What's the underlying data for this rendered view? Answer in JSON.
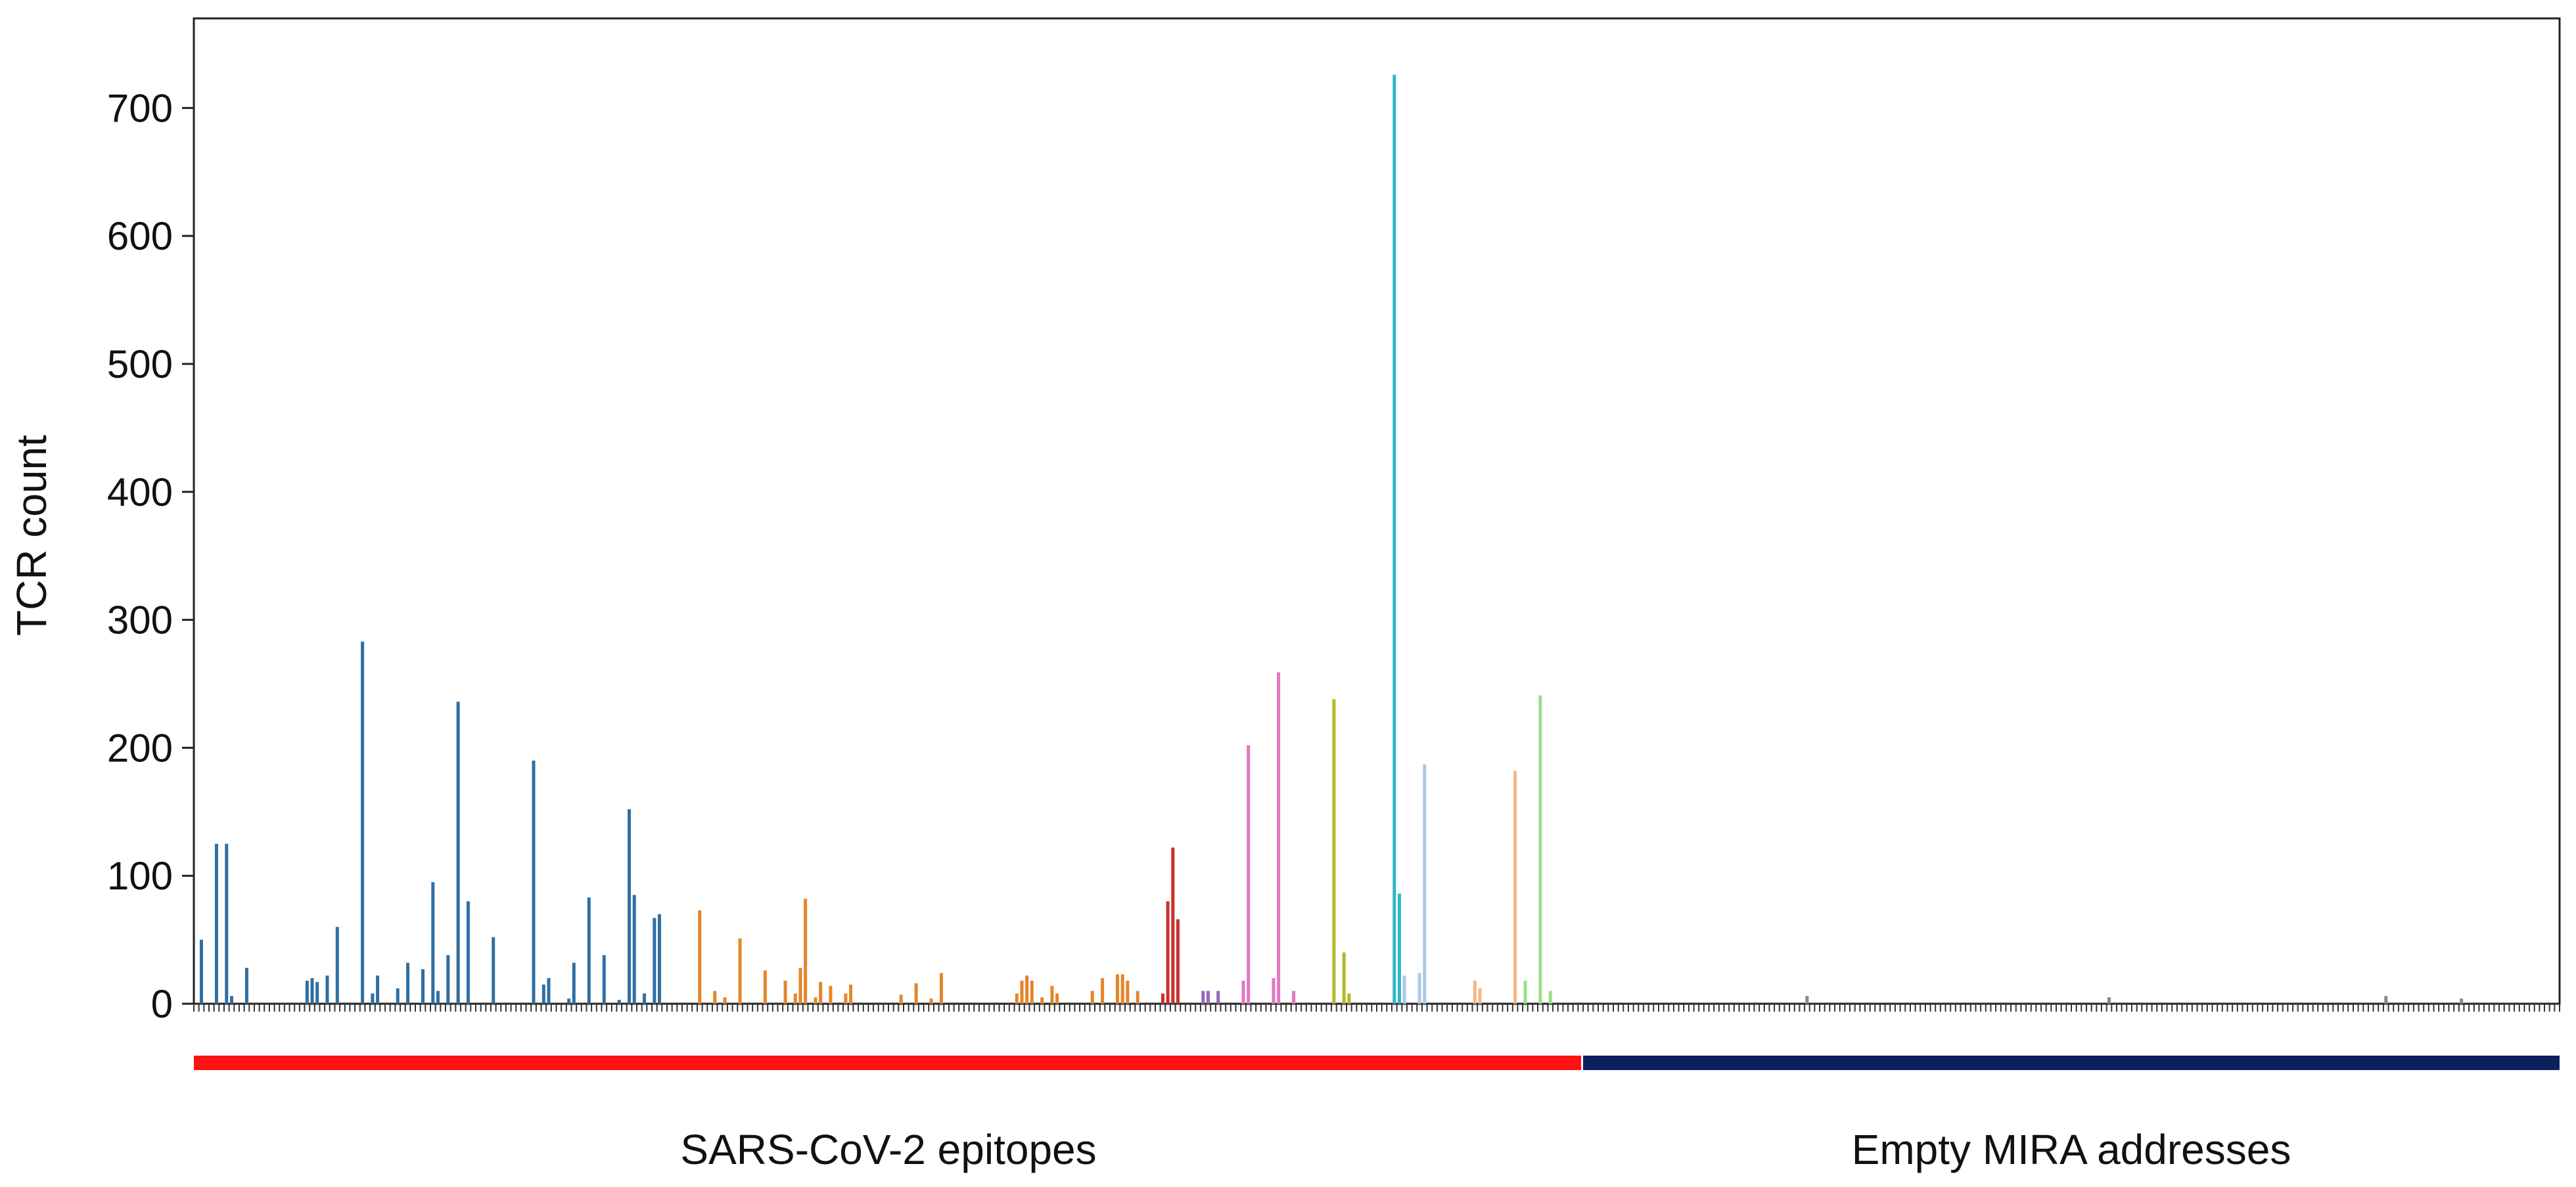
{
  "chart_data": {
    "type": "bar",
    "title": "",
    "xlabel": "",
    "ylabel": "TCR count",
    "ylim": [
      0,
      770
    ],
    "yticks": [
      0,
      100,
      200,
      300,
      400,
      500,
      600,
      700
    ],
    "grid": false,
    "legend": "none",
    "colors": {
      "blue": "#2f6fa3",
      "orange": "#e6852b",
      "red": "#c9302c",
      "purple": "#9467bd",
      "pink": "#e377c2",
      "olive": "#b5b82a",
      "cyan": "#2fb6c8",
      "lightblue": "#aec7e8",
      "peach": "#f7b680",
      "lightgreen": "#98df8a",
      "gray": "#888888"
    },
    "series_colors": [
      "blue",
      "orange",
      "red",
      "purple",
      "pink",
      "olive",
      "cyan",
      "lightblue",
      "peach",
      "lightgreen",
      "gray"
    ],
    "groups": [
      {
        "label": "SARS-CoV-2 epitopes",
        "color": "#ff1111",
        "count": 276
      },
      {
        "label": "Empty MIRA addresses",
        "color": "#0d1f5e",
        "count": 194
      }
    ],
    "bars": [
      [
        1,
        50,
        0
      ],
      [
        4,
        125,
        0
      ],
      [
        6,
        125,
        0
      ],
      [
        7,
        6,
        0
      ],
      [
        10,
        28,
        0
      ],
      [
        22,
        18,
        0
      ],
      [
        23,
        20,
        0
      ],
      [
        24,
        17,
        0
      ],
      [
        26,
        22,
        0
      ],
      [
        28,
        60,
        0
      ],
      [
        33,
        283,
        0
      ],
      [
        35,
        8,
        0
      ],
      [
        36,
        22,
        0
      ],
      [
        40,
        12,
        0
      ],
      [
        42,
        32,
        0
      ],
      [
        45,
        27,
        0
      ],
      [
        47,
        95,
        0
      ],
      [
        48,
        10,
        0
      ],
      [
        50,
        38,
        0
      ],
      [
        52,
        236,
        0
      ],
      [
        54,
        80,
        0
      ],
      [
        59,
        52,
        0
      ],
      [
        67,
        190,
        0
      ],
      [
        69,
        15,
        0
      ],
      [
        70,
        20,
        0
      ],
      [
        74,
        4,
        0
      ],
      [
        75,
        32,
        0
      ],
      [
        78,
        83,
        0
      ],
      [
        81,
        38,
        0
      ],
      [
        84,
        3,
        0
      ],
      [
        86,
        152,
        0
      ],
      [
        87,
        85,
        0
      ],
      [
        89,
        8,
        0
      ],
      [
        91,
        67,
        0
      ],
      [
        92,
        70,
        0
      ],
      [
        100,
        73,
        1
      ],
      [
        103,
        10,
        1
      ],
      [
        105,
        5,
        1
      ],
      [
        108,
        51,
        1
      ],
      [
        113,
        26,
        1
      ],
      [
        117,
        18,
        1
      ],
      [
        119,
        8,
        1
      ],
      [
        120,
        28,
        1
      ],
      [
        121,
        82,
        1
      ],
      [
        123,
        5,
        1
      ],
      [
        124,
        17,
        1
      ],
      [
        126,
        14,
        1
      ],
      [
        129,
        8,
        1
      ],
      [
        130,
        15,
        1
      ],
      [
        140,
        7,
        1
      ],
      [
        143,
        16,
        1
      ],
      [
        146,
        4,
        1
      ],
      [
        148,
        24,
        1
      ],
      [
        163,
        8,
        1
      ],
      [
        164,
        18,
        1
      ],
      [
        165,
        22,
        1
      ],
      [
        166,
        18,
        1
      ],
      [
        168,
        5,
        1
      ],
      [
        170,
        14,
        1
      ],
      [
        171,
        8,
        1
      ],
      [
        178,
        10,
        1
      ],
      [
        180,
        20,
        1
      ],
      [
        183,
        23,
        1
      ],
      [
        184,
        23,
        1
      ],
      [
        185,
        18,
        1
      ],
      [
        187,
        10,
        1
      ],
      [
        192,
        8,
        2
      ],
      [
        193,
        80,
        2
      ],
      [
        194,
        122,
        2
      ],
      [
        195,
        66,
        2
      ],
      [
        200,
        10,
        3
      ],
      [
        201,
        10,
        3
      ],
      [
        203,
        10,
        3
      ],
      [
        208,
        18,
        4
      ],
      [
        209,
        202,
        4
      ],
      [
        214,
        20,
        4
      ],
      [
        215,
        259,
        4
      ],
      [
        218,
        10,
        4
      ],
      [
        228,
        40,
        5
      ],
      [
        229,
        8,
        5
      ],
      [
        226,
        238,
        5
      ],
      [
        238,
        726,
        6
      ],
      [
        239,
        86,
        6
      ],
      [
        240,
        22,
        7
      ],
      [
        243,
        24,
        7
      ],
      [
        244,
        187,
        7
      ],
      [
        254,
        18,
        8
      ],
      [
        255,
        12,
        8
      ],
      [
        262,
        182,
        8
      ],
      [
        264,
        18,
        9
      ],
      [
        267,
        241,
        9
      ],
      [
        269,
        10,
        9
      ],
      [
        320,
        6,
        10
      ],
      [
        380,
        5,
        10
      ],
      [
        435,
        6,
        10
      ],
      [
        450,
        4,
        10
      ]
    ]
  }
}
